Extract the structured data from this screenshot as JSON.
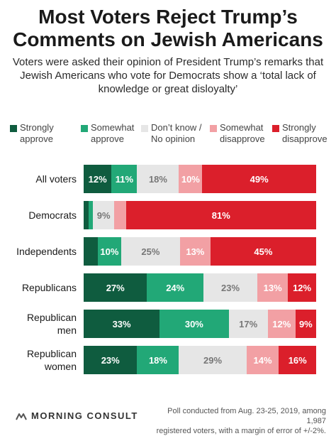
{
  "title_line1": "Most Voters Reject Trump’s",
  "title_line2": "Comments on Jewish Americans",
  "subtitle": "Voters were asked their opinion of President Trump’s remarks that Jewish Americans who vote for Democrats show a ‘total lack of knowledge or great disloyalty’",
  "legend": [
    {
      "label": "Strongly\napprove",
      "color": "#0f5c3f"
    },
    {
      "label": "Somewhat\napprove",
      "color": "#22a877"
    },
    {
      "label": "Don’t know /\nNo opinion",
      "color": "#e6e6e6"
    },
    {
      "label": "Somewhat\ndisapprove",
      "color": "#f2a0a4"
    },
    {
      "label": "Strongly\ndisapprove",
      "color": "#db1f2b"
    }
  ],
  "chart_data": {
    "type": "bar",
    "orientation": "horizontal",
    "stacked": true,
    "percent_axis": [
      0,
      100
    ],
    "categories": [
      "All voters",
      "Democrats",
      "Independents",
      "Republicans",
      "Republican\nmen",
      "Republican\nwomen"
    ],
    "series": [
      {
        "name": "Strongly approve",
        "values": [
          12,
          2,
          6,
          27,
          33,
          23
        ],
        "labels": [
          "12%",
          "",
          "",
          "27%",
          "33%",
          "23%"
        ],
        "label_color": "#ffffff"
      },
      {
        "name": "Somewhat approve",
        "values": [
          11,
          2,
          10,
          24,
          30,
          18
        ],
        "labels": [
          "11%",
          "",
          "10%",
          "24%",
          "30%",
          "18%"
        ],
        "label_color": "#ffffff"
      },
      {
        "name": "Don’t know / No opinion",
        "values": [
          18,
          9,
          25,
          23,
          17,
          29
        ],
        "labels": [
          "18%",
          "9%",
          "25%",
          "23%",
          "17%",
          "29%"
        ],
        "label_color": "#777777"
      },
      {
        "name": "Somewhat disapprove",
        "values": [
          10,
          5,
          13,
          13,
          12,
          14
        ],
        "labels": [
          "10%",
          "",
          "13%",
          "13%",
          "12%",
          "14%"
        ],
        "label_color": "#ffffff"
      },
      {
        "name": "Strongly disapprove",
        "values": [
          49,
          81,
          45,
          12,
          9,
          16
        ],
        "labels": [
          "49%",
          "81%",
          "45%",
          "12%",
          "9%",
          "16%"
        ],
        "label_color": "#ffffff"
      }
    ]
  },
  "footer": {
    "brand": "MORNING CONSULT",
    "note": "Poll conducted from Aug. 23-25, 2019, among 1,987\nregistered voters, with a margin of error of +/-2%."
  }
}
